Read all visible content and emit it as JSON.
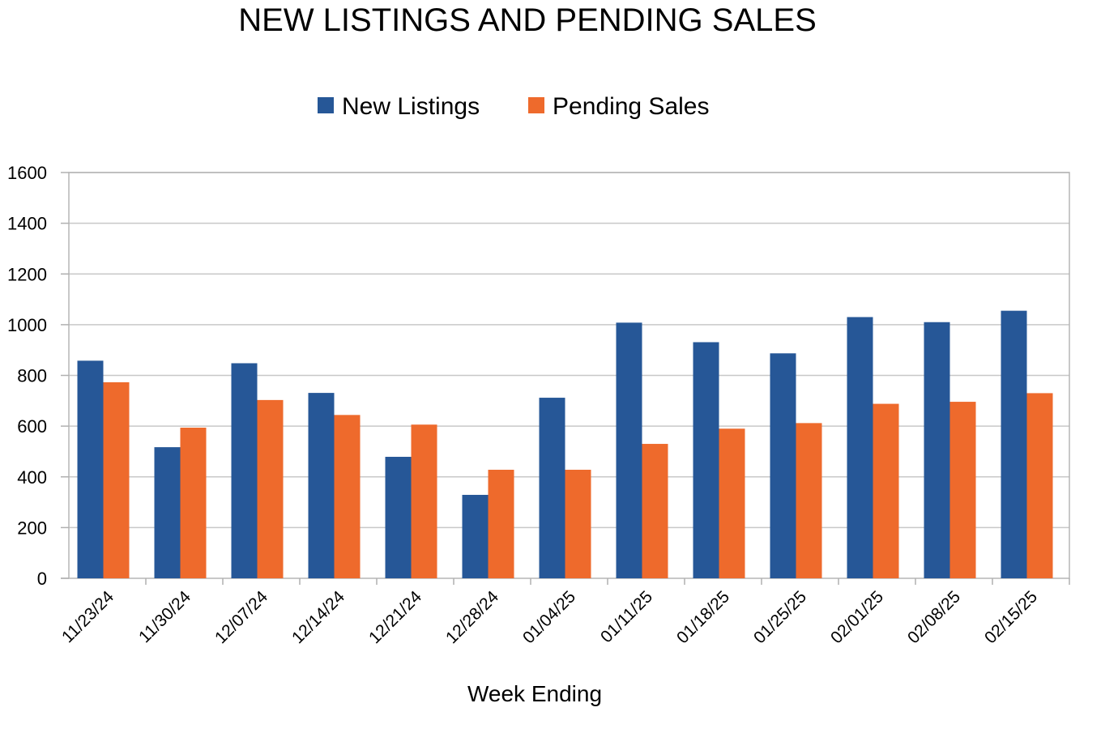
{
  "chart_data": {
    "type": "bar",
    "title": "NEW LISTINGS AND PENDING SALES",
    "xlabel": "Week Ending",
    "ylabel": "",
    "ylim": [
      0,
      1600
    ],
    "yticks": [
      0,
      200,
      400,
      600,
      800,
      1000,
      1200,
      1400,
      1600
    ],
    "grid": true,
    "legend_position": "top-center",
    "categories": [
      "11/23/24",
      "11/30/24",
      "12/07/24",
      "12/14/24",
      "12/21/24",
      "12/28/24",
      "01/04/25",
      "01/11/25",
      "01/18/25",
      "01/25/25",
      "02/01/25",
      "02/08/25",
      "02/15/25"
    ],
    "series": [
      {
        "name": "New Listings",
        "color": "#265797",
        "values": [
          858,
          517,
          848,
          731,
          479,
          329,
          712,
          1008,
          931,
          887,
          1030,
          1010,
          1055
        ]
      },
      {
        "name": "Pending Sales",
        "color": "#EE6A2C",
        "values": [
          773,
          594,
          703,
          644,
          606,
          428,
          428,
          530,
          590,
          612,
          688,
          696,
          730
        ]
      }
    ]
  }
}
